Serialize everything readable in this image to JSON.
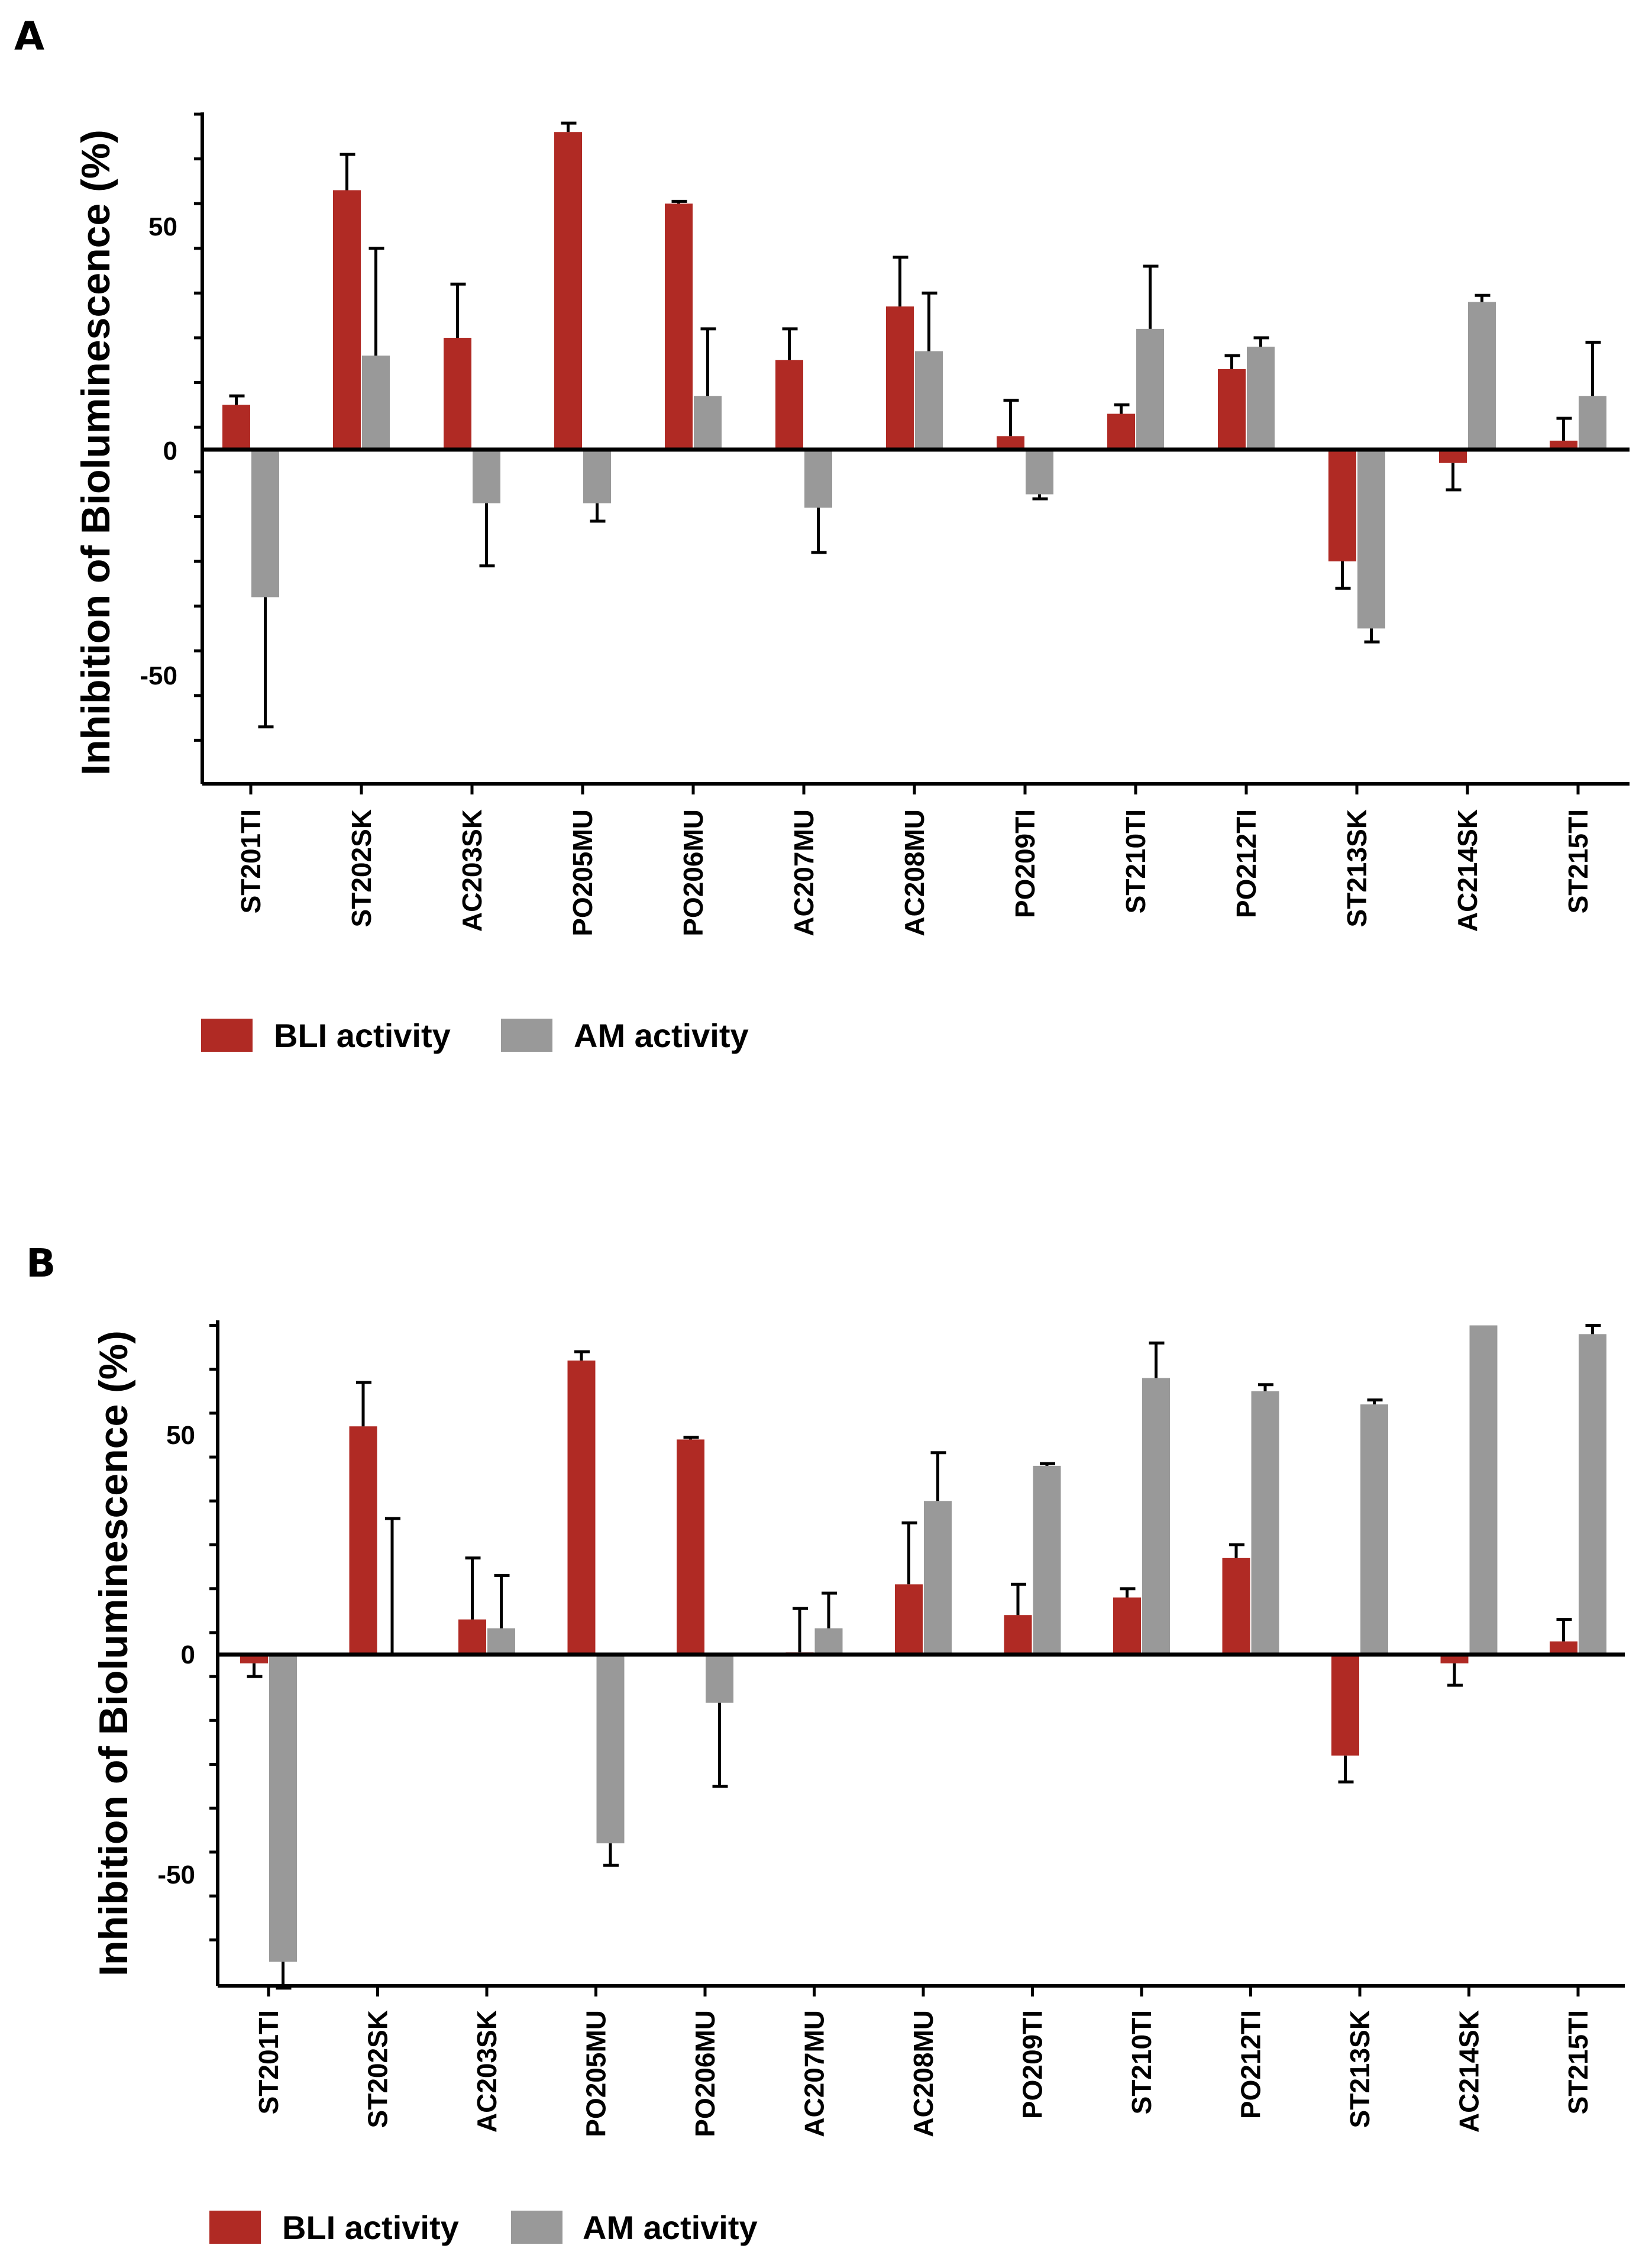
{
  "colors": {
    "bli": "#B02A24",
    "am": "#999999",
    "axis": "#000000"
  },
  "chart_data": [
    {
      "panel": "A",
      "type": "bar",
      "ylabel": "Inhibition of Bioluminescence (%)",
      "xlabel": "",
      "ylim": [
        -75,
        75
      ],
      "yticks": [
        50,
        0,
        -50
      ],
      "ytick_labels": [
        "50",
        "0",
        "-50"
      ],
      "categories": [
        "ST201TI",
        "ST202SK",
        "AC203SK",
        "PO205MU",
        "PO206MU",
        "AC207MU",
        "AC208MU",
        "PO209TI",
        "ST210TI",
        "PO212TI",
        "ST213SK",
        "AC214SK",
        "ST215TI"
      ],
      "series": [
        {
          "name": "BLI activity",
          "color_key": "bli",
          "values": [
            10,
            58,
            25,
            71,
            55,
            20,
            32,
            3,
            8,
            18,
            -25,
            -3,
            2
          ],
          "errors": [
            2,
            8,
            12,
            2,
            0.5,
            7,
            11,
            8,
            2,
            3,
            6,
            6,
            5
          ]
        },
        {
          "name": "AM activity",
          "color_key": "am",
          "values": [
            -33,
            21,
            -12,
            -12,
            12,
            -13,
            22,
            -10,
            27,
            23,
            -40,
            33,
            12
          ],
          "errors": [
            29,
            24,
            14,
            4,
            15,
            10,
            13,
            1,
            14,
            2,
            3,
            1.5,
            12
          ]
        }
      ],
      "legend": [
        "BLI activity",
        "AM activity"
      ]
    },
    {
      "panel": "B",
      "type": "bar",
      "ylabel": "Inhibition of Bioluminescence (%)",
      "xlabel": "",
      "ylim": [
        -75,
        75
      ],
      "yticks": [
        50,
        0,
        -50
      ],
      "ytick_labels": [
        "50",
        "0",
        "-50"
      ],
      "categories": [
        "ST201TI",
        "ST202SK",
        "AC203SK",
        "PO205MU",
        "PO206MU",
        "AC207MU",
        "AC208MU",
        "PO209TI",
        "ST210TI",
        "PO212TI",
        "ST213SK",
        "AC214SK",
        "ST215TI"
      ],
      "series": [
        {
          "name": "BLI activity",
          "color_key": "bli",
          "values": [
            -2,
            52,
            8,
            67,
            49,
            0.5,
            16,
            9,
            13,
            22,
            -23,
            -2,
            3
          ],
          "errors": [
            3,
            10,
            14,
            2,
            0.5,
            10,
            14,
            7,
            2,
            3,
            6,
            5,
            5
          ]
        },
        {
          "name": "AM activity",
          "color_key": "am",
          "values": [
            -70,
            0,
            6,
            -43,
            -11,
            6,
            35,
            43,
            63,
            60,
            57,
            75,
            73
          ],
          "errors": [
            6,
            31,
            12,
            5,
            19,
            8,
            11,
            0.5,
            8,
            1.5,
            1,
            0,
            2
          ]
        }
      ],
      "legend": [
        "BLI activity",
        "AM activity"
      ]
    }
  ]
}
